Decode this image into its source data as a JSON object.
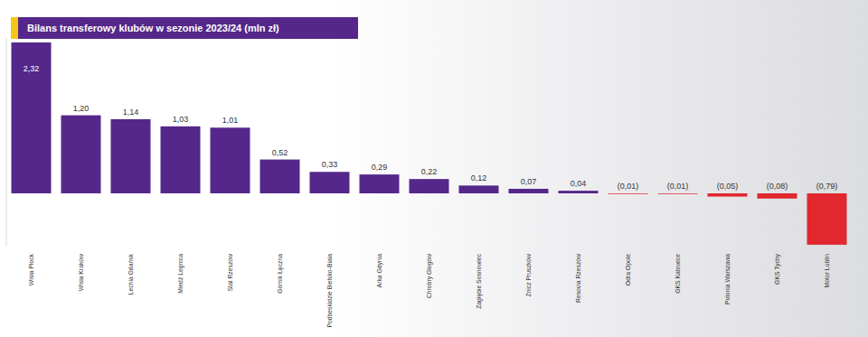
{
  "chart_data": {
    "type": "bar",
    "title": "Bilans transferowy klubów w sezonie 2023/24 (mln zł)",
    "categories": [
      "Wisła Płock",
      "Wisła Kraków",
      "Lechia Gdańsk",
      "Miedź Legnica",
      "Stal Rzeszów",
      "Górnik Łęczna",
      "Podbeskidzie Bielsko-Biała",
      "Arka Gdynia",
      "Chrobry Głogów",
      "Zagłębie Sosnowiec",
      "Znicz Pruszków",
      "Resovia Rzeszów",
      "Odra Opole",
      "GKS Katowice",
      "Polonia Warszawa",
      "GKS Tychy",
      "Motor Lublin"
    ],
    "values": [
      2.32,
      1.2,
      1.14,
      1.03,
      1.01,
      0.52,
      0.33,
      0.29,
      0.22,
      0.12,
      0.07,
      0.04,
      -0.01,
      -0.01,
      -0.05,
      -0.08,
      -0.79
    ],
    "value_labels": [
      "2,32",
      "1,20",
      "1,14",
      "1,03",
      "1,01",
      "0,52",
      "0,33",
      "0,29",
      "0,22",
      "0,12",
      "0,07",
      "0,04",
      "(0,01)",
      "(0,01)",
      "(0,05)",
      "(0,08)",
      "(0,79)"
    ],
    "colors": [
      "#55278a",
      "#55278a",
      "#55278a",
      "#55278a",
      "#55278a",
      "#55278a",
      "#55278a",
      "#55278a",
      "#55278a",
      "#55278a",
      "#55278a",
      "#55278a",
      "#e0282e",
      "#e0282e",
      "#e0282e",
      "#e0282e",
      "#e0282e"
    ],
    "ylim": [
      -0.8,
      2.4
    ],
    "data_labels": true,
    "tick_labels": "x"
  }
}
